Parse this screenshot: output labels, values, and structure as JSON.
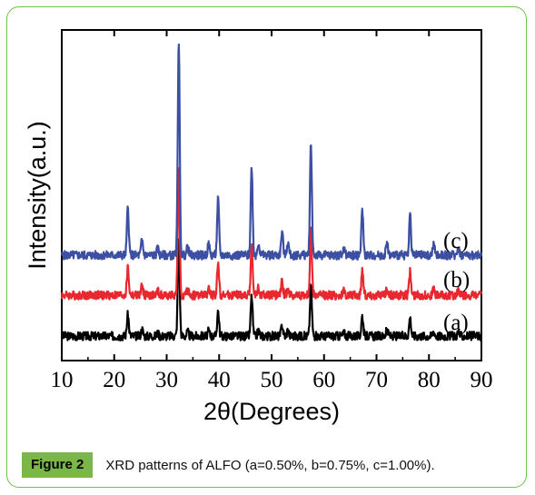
{
  "caption": {
    "label": "Figure 2",
    "text": "XRD patterns of ALFO (a=0.50%, b=0.75%, c=1.00%)."
  },
  "colors": {
    "frame_border": "#6fbf4a",
    "caption_badge": "#7ab648"
  },
  "chart_data": {
    "type": "line",
    "xlabel": "2θ(Degrees)",
    "ylabel": "Intensity(a.u.)",
    "xlim": [
      10,
      90
    ],
    "xticks": [
      10,
      20,
      30,
      40,
      50,
      60,
      70,
      80,
      90
    ],
    "ytick_labels": false,
    "grid": false,
    "baseline_noise": 0.02,
    "peaks": [
      {
        "x": 22.6,
        "h": 0.22
      },
      {
        "x": 25.3,
        "h": 0.07
      },
      {
        "x": 28.3,
        "h": 0.03
      },
      {
        "x": 32.3,
        "h": 1.0
      },
      {
        "x": 34.0,
        "h": 0.04
      },
      {
        "x": 38.0,
        "h": 0.05
      },
      {
        "x": 39.8,
        "h": 0.26
      },
      {
        "x": 46.2,
        "h": 0.41
      },
      {
        "x": 47.5,
        "h": 0.06
      },
      {
        "x": 52.0,
        "h": 0.11
      },
      {
        "x": 53.1,
        "h": 0.06
      },
      {
        "x": 57.5,
        "h": 0.52
      },
      {
        "x": 63.8,
        "h": 0.03
      },
      {
        "x": 67.3,
        "h": 0.21
      },
      {
        "x": 72.0,
        "h": 0.06
      },
      {
        "x": 76.4,
        "h": 0.19
      },
      {
        "x": 80.9,
        "h": 0.05
      },
      {
        "x": 85.6,
        "h": 0.04
      }
    ],
    "series": [
      {
        "name": "(a)",
        "color": "#000000",
        "peak_scale": 0.45
      },
      {
        "name": "(b)",
        "color": "#e8282e",
        "peak_scale": 0.58
      },
      {
        "name": "(c)",
        "color": "#3c4fa3",
        "peak_scale": 1.0
      }
    ]
  }
}
